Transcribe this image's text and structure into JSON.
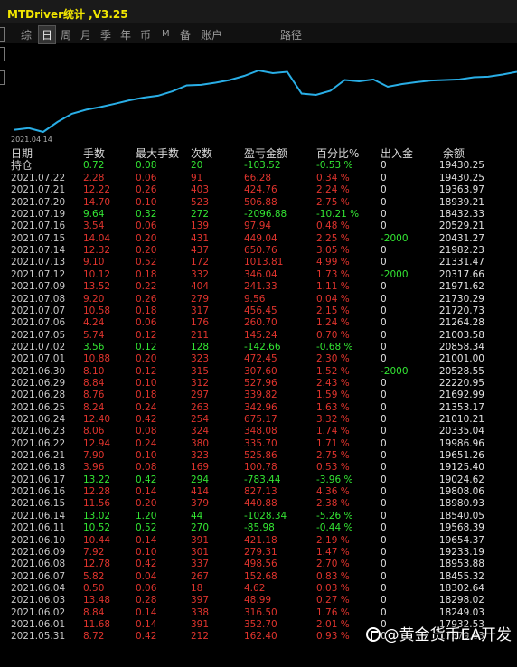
{
  "window": {
    "title": "MTDriver统计 ,V3.25"
  },
  "tabs": [
    {
      "label": "综",
      "active": false
    },
    {
      "label": "日",
      "active": true
    },
    {
      "label": "周",
      "active": false
    },
    {
      "label": "月",
      "active": false
    },
    {
      "label": "季",
      "active": false
    },
    {
      "label": "年",
      "active": false
    },
    {
      "label": "币",
      "active": false
    },
    {
      "label": "M",
      "active": false
    },
    {
      "label": "备",
      "active": false
    },
    {
      "label": "账户",
      "active": false
    },
    {
      "label": "路径",
      "active": false
    }
  ],
  "chart_data": {
    "type": "line",
    "x_start_label": "2021.04.14",
    "line_color": "#29aee6",
    "grid": false,
    "series": [
      {
        "values": [
          16860,
          16920,
          16780,
          17150,
          17450,
          17600,
          17700,
          17820,
          17950,
          18050,
          18120,
          18280,
          18500,
          18520,
          18600,
          18700,
          18850,
          19050,
          18950,
          19000,
          18200,
          18150,
          18300,
          18700,
          18650,
          18720,
          18450,
          18550,
          18620,
          18680,
          18700,
          18720,
          18800,
          18820,
          18900,
          19000
        ]
      }
    ]
  },
  "table": {
    "headers": {
      "date": "日期",
      "lots": "手数",
      "max_lots": "最大手数",
      "count": "次数",
      "pnl": "盈亏金额",
      "pct": "百分比%",
      "deposit": "出入金",
      "balance": "余额"
    },
    "holding": {
      "label": "持仓",
      "lots": "0.72",
      "max_lots": "0.08",
      "count": "20",
      "pnl": "-103.52",
      "pct": "-0.53 %",
      "deposit": "0",
      "balance": "19430.25"
    },
    "rows": [
      {
        "date": "2021.07.22",
        "lots": "2.28",
        "max": "0.06",
        "count": "91",
        "pnl": "66.28",
        "pct": "0.34 %",
        "dep": "0",
        "bal": "19430.25",
        "c": "red"
      },
      {
        "date": "2021.07.21",
        "lots": "12.22",
        "max": "0.26",
        "count": "403",
        "pnl": "424.76",
        "pct": "2.24 %",
        "dep": "0",
        "bal": "19363.97",
        "c": "red"
      },
      {
        "date": "2021.07.20",
        "lots": "14.70",
        "max": "0.10",
        "count": "523",
        "pnl": "506.88",
        "pct": "2.75 %",
        "dep": "0",
        "bal": "18939.21",
        "c": "red"
      },
      {
        "date": "2021.07.19",
        "lots": "9.64",
        "max": "0.32",
        "count": "272",
        "pnl": "-2096.88",
        "pct": "-10.21 %",
        "dep": "0",
        "bal": "18432.33",
        "c": "green"
      },
      {
        "date": "2021.07.16",
        "lots": "3.54",
        "max": "0.06",
        "count": "139",
        "pnl": "97.94",
        "pct": "0.48 %",
        "dep": "0",
        "bal": "20529.21",
        "c": "red"
      },
      {
        "date": "2021.07.15",
        "lots": "14.04",
        "max": "0.20",
        "count": "431",
        "pnl": "449.04",
        "pct": "2.25 %",
        "dep": "-2000",
        "bal": "20431.27",
        "c": "red"
      },
      {
        "date": "2021.07.14",
        "lots": "12.32",
        "max": "0.20",
        "count": "437",
        "pnl": "650.76",
        "pct": "3.05 %",
        "dep": "0",
        "bal": "21982.23",
        "c": "red"
      },
      {
        "date": "2021.07.13",
        "lots": "9.10",
        "max": "0.52",
        "count": "172",
        "pnl": "1013.81",
        "pct": "4.99 %",
        "dep": "0",
        "bal": "21331.47",
        "c": "red"
      },
      {
        "date": "2021.07.12",
        "lots": "10.12",
        "max": "0.18",
        "count": "332",
        "pnl": "346.04",
        "pct": "1.73 %",
        "dep": "-2000",
        "bal": "20317.66",
        "c": "red"
      },
      {
        "date": "2021.07.09",
        "lots": "13.52",
        "max": "0.22",
        "count": "404",
        "pnl": "241.33",
        "pct": "1.11 %",
        "dep": "0",
        "bal": "21971.62",
        "c": "red"
      },
      {
        "date": "2021.07.08",
        "lots": "9.20",
        "max": "0.26",
        "count": "279",
        "pnl": "9.56",
        "pct": "0.04 %",
        "dep": "0",
        "bal": "21730.29",
        "c": "red"
      },
      {
        "date": "2021.07.07",
        "lots": "10.58",
        "max": "0.18",
        "count": "317",
        "pnl": "456.45",
        "pct": "2.15 %",
        "dep": "0",
        "bal": "21720.73",
        "c": "red"
      },
      {
        "date": "2021.07.06",
        "lots": "4.24",
        "max": "0.06",
        "count": "176",
        "pnl": "260.70",
        "pct": "1.24 %",
        "dep": "0",
        "bal": "21264.28",
        "c": "red"
      },
      {
        "date": "2021.07.05",
        "lots": "5.74",
        "max": "0.12",
        "count": "211",
        "pnl": "145.24",
        "pct": "0.70 %",
        "dep": "0",
        "bal": "21003.58",
        "c": "red"
      },
      {
        "date": "2021.07.02",
        "lots": "3.56",
        "max": "0.12",
        "count": "128",
        "pnl": "-142.66",
        "pct": "-0.68 %",
        "dep": "0",
        "bal": "20858.34",
        "c": "green"
      },
      {
        "date": "2021.07.01",
        "lots": "10.88",
        "max": "0.20",
        "count": "323",
        "pnl": "472.45",
        "pct": "2.30 %",
        "dep": "0",
        "bal": "21001.00",
        "c": "red"
      },
      {
        "date": "2021.06.30",
        "lots": "8.10",
        "max": "0.12",
        "count": "315",
        "pnl": "307.60",
        "pct": "1.52 %",
        "dep": "-2000",
        "bal": "20528.55",
        "c": "red"
      },
      {
        "date": "2021.06.29",
        "lots": "8.84",
        "max": "0.10",
        "count": "312",
        "pnl": "527.96",
        "pct": "2.43 %",
        "dep": "0",
        "bal": "22220.95",
        "c": "red"
      },
      {
        "date": "2021.06.28",
        "lots": "8.76",
        "max": "0.18",
        "count": "297",
        "pnl": "339.82",
        "pct": "1.59 %",
        "dep": "0",
        "bal": "21692.99",
        "c": "red"
      },
      {
        "date": "2021.06.25",
        "lots": "8.24",
        "max": "0.24",
        "count": "263",
        "pnl": "342.96",
        "pct": "1.63 %",
        "dep": "0",
        "bal": "21353.17",
        "c": "red"
      },
      {
        "date": "2021.06.24",
        "lots": "12.40",
        "max": "0.42",
        "count": "254",
        "pnl": "675.17",
        "pct": "3.32 %",
        "dep": "0",
        "bal": "21010.21",
        "c": "red"
      },
      {
        "date": "2021.06.23",
        "lots": "8.06",
        "max": "0.08",
        "count": "324",
        "pnl": "348.08",
        "pct": "1.74 %",
        "dep": "0",
        "bal": "20335.04",
        "c": "red"
      },
      {
        "date": "2021.06.22",
        "lots": "12.94",
        "max": "0.24",
        "count": "380",
        "pnl": "335.70",
        "pct": "1.71 %",
        "dep": "0",
        "bal": "19986.96",
        "c": "red"
      },
      {
        "date": "2021.06.21",
        "lots": "7.90",
        "max": "0.10",
        "count": "323",
        "pnl": "525.86",
        "pct": "2.75 %",
        "dep": "0",
        "bal": "19651.26",
        "c": "red"
      },
      {
        "date": "2021.06.18",
        "lots": "3.96",
        "max": "0.08",
        "count": "169",
        "pnl": "100.78",
        "pct": "0.53 %",
        "dep": "0",
        "bal": "19125.40",
        "c": "red"
      },
      {
        "date": "2021.06.17",
        "lots": "13.22",
        "max": "0.42",
        "count": "294",
        "pnl": "-783.44",
        "pct": "-3.96 %",
        "dep": "0",
        "bal": "19024.62",
        "c": "green"
      },
      {
        "date": "2021.06.16",
        "lots": "12.28",
        "max": "0.14",
        "count": "414",
        "pnl": "827.13",
        "pct": "4.36 %",
        "dep": "0",
        "bal": "19808.06",
        "c": "red"
      },
      {
        "date": "2021.06.15",
        "lots": "11.56",
        "max": "0.20",
        "count": "379",
        "pnl": "440.88",
        "pct": "2.38 %",
        "dep": "0",
        "bal": "18980.93",
        "c": "red"
      },
      {
        "date": "2021.06.14",
        "lots": "13.02",
        "max": "1.20",
        "count": "44",
        "pnl": "-1028.34",
        "pct": "-5.26 %",
        "dep": "0",
        "bal": "18540.05",
        "c": "green"
      },
      {
        "date": "2021.06.11",
        "lots": "10.52",
        "max": "0.52",
        "count": "270",
        "pnl": "-85.98",
        "pct": "-0.44 %",
        "dep": "0",
        "bal": "19568.39",
        "c": "green"
      },
      {
        "date": "2021.06.10",
        "lots": "10.44",
        "max": "0.14",
        "count": "391",
        "pnl": "421.18",
        "pct": "2.19 %",
        "dep": "0",
        "bal": "19654.37",
        "c": "red"
      },
      {
        "date": "2021.06.09",
        "lots": "7.92",
        "max": "0.10",
        "count": "301",
        "pnl": "279.31",
        "pct": "1.47 %",
        "dep": "0",
        "bal": "19233.19",
        "c": "red"
      },
      {
        "date": "2021.06.08",
        "lots": "12.78",
        "max": "0.42",
        "count": "337",
        "pnl": "498.56",
        "pct": "2.70 %",
        "dep": "0",
        "bal": "18953.88",
        "c": "red"
      },
      {
        "date": "2021.06.07",
        "lots": "5.82",
        "max": "0.04",
        "count": "267",
        "pnl": "152.68",
        "pct": "0.83 %",
        "dep": "0",
        "bal": "18455.32",
        "c": "red"
      },
      {
        "date": "2021.06.04",
        "lots": "0.50",
        "max": "0.06",
        "count": "18",
        "pnl": "4.62",
        "pct": "0.03 %",
        "dep": "0",
        "bal": "18302.64",
        "c": "red"
      },
      {
        "date": "2021.06.03",
        "lots": "13.48",
        "max": "0.28",
        "count": "397",
        "pnl": "48.99",
        "pct": "0.27 %",
        "dep": "0",
        "bal": "18298.02",
        "c": "red"
      },
      {
        "date": "2021.06.02",
        "lots": "8.84",
        "max": "0.14",
        "count": "338",
        "pnl": "316.50",
        "pct": "1.76 %",
        "dep": "0",
        "bal": "18249.03",
        "c": "red"
      },
      {
        "date": "2021.06.01",
        "lots": "11.68",
        "max": "0.14",
        "count": "391",
        "pnl": "352.70",
        "pct": "2.01 %",
        "dep": "0",
        "bal": "17932.53",
        "c": "red"
      },
      {
        "date": "2021.05.31",
        "lots": "8.72",
        "max": "0.42",
        "count": "212",
        "pnl": "162.40",
        "pct": "0.93 %",
        "dep": "0",
        "bal": "17579.83",
        "c": "red"
      }
    ]
  },
  "watermark": {
    "text": "@黄金货币EA开发",
    "icon": "platform-logo-icon"
  }
}
